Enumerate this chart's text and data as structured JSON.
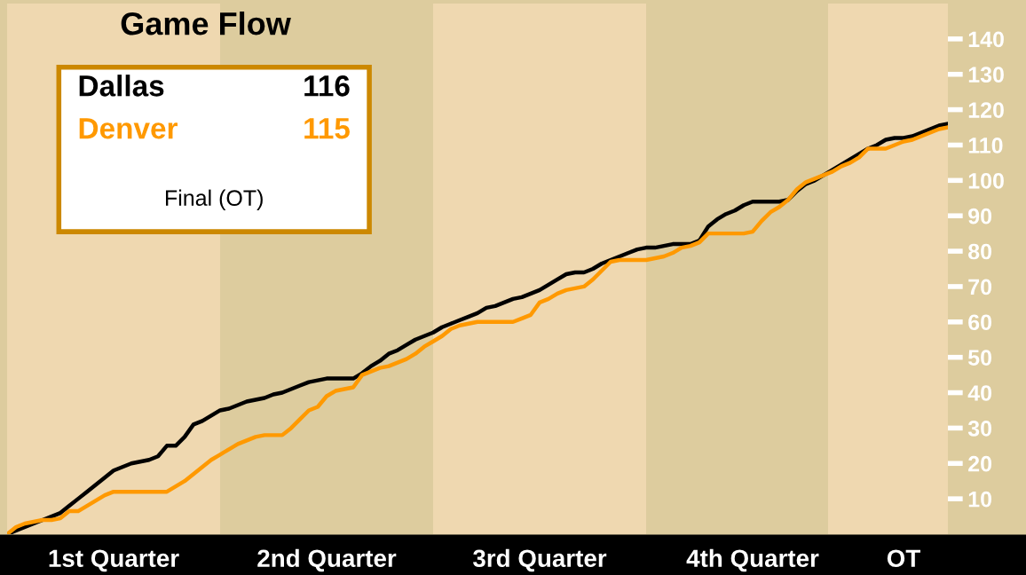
{
  "chart_data": {
    "type": "line",
    "title": "Game Flow",
    "categories": [
      null,
      null,
      null,
      null,
      null,
      null,
      null,
      null,
      null,
      null,
      null,
      null,
      "1st Quarter",
      null,
      null,
      null,
      null,
      null,
      null,
      null,
      null,
      null,
      null,
      null,
      null,
      null,
      null,
      null,
      null,
      null,
      null,
      null,
      null,
      null,
      null,
      null,
      "2nd Quarter",
      null,
      null,
      null,
      null,
      null,
      null,
      null,
      null,
      null,
      null,
      null,
      null,
      null,
      null,
      null,
      null,
      null,
      null,
      null,
      null,
      null,
      null,
      null,
      "3rd Quarter",
      null,
      null,
      null,
      null,
      null,
      null,
      null,
      null,
      null,
      null,
      null,
      null,
      null,
      null,
      null,
      null,
      null,
      null,
      null,
      null,
      null,
      null,
      null,
      "4th Quarter",
      null,
      null,
      null,
      null,
      null,
      null,
      null,
      null,
      null,
      null,
      null,
      null,
      null,
      null,
      null,
      null,
      "OT",
      null,
      null,
      null,
      null,
      null
    ],
    "series": [
      {
        "name": "Dallas",
        "color": "#000000",
        "values": [
          0,
          1,
          2,
          3,
          4,
          5,
          6,
          8,
          10,
          12,
          14,
          16,
          18,
          19,
          20,
          20.5,
          21,
          22,
          25,
          25,
          27.5,
          31,
          32,
          33.5,
          35,
          35.5,
          36.5,
          37.5,
          38,
          38.5,
          39.5,
          40,
          41,
          42,
          43,
          43.5,
          44,
          44,
          44,
          44,
          45.5,
          47.5,
          49,
          51,
          52,
          53.5,
          55,
          56,
          57,
          58.5,
          59.5,
          60.5,
          61.5,
          62.5,
          64,
          64.5,
          65.5,
          66.5,
          67,
          68,
          69,
          70.5,
          72,
          73.5,
          74,
          74,
          75,
          76.5,
          77.5,
          78.5,
          79.5,
          80.5,
          81,
          81,
          81.5,
          82,
          82,
          82,
          83,
          87,
          89,
          90.5,
          91.5,
          93,
          94,
          94,
          94,
          94,
          94.5,
          97,
          99,
          100,
          101.5,
          103,
          104.5,
          106,
          107.5,
          109,
          110,
          111.5,
          112,
          112,
          112.5,
          113.5,
          114.5,
          115.5,
          116
        ]
      },
      {
        "name": "Denver",
        "color": "#ff9900",
        "values": [
          0,
          2,
          3,
          3.5,
          4,
          4,
          4.5,
          6.5,
          6.5,
          8,
          9.5,
          11,
          12,
          12,
          12,
          12,
          12,
          12,
          12,
          13.5,
          15,
          17,
          19,
          21,
          22.5,
          24,
          25.5,
          26.5,
          27.5,
          28,
          28,
          28,
          30,
          32.5,
          35,
          36,
          39,
          40.5,
          41,
          41.5,
          45,
          46,
          47,
          47.5,
          48.5,
          49.5,
          51,
          53,
          54.5,
          56,
          58,
          59,
          59.5,
          60,
          60,
          60,
          60,
          60,
          61,
          62,
          65.5,
          66.5,
          68,
          69,
          69.5,
          70,
          72,
          74.5,
          77,
          77.5,
          77.5,
          77.5,
          77.5,
          78,
          78.5,
          79.5,
          81,
          81.5,
          82.5,
          85,
          85,
          85,
          85,
          85,
          85.5,
          88.5,
          91,
          92.5,
          94.5,
          97.5,
          99.5,
          100.5,
          101.5,
          102.5,
          104,
          105,
          106.5,
          109,
          109,
          109,
          110,
          111,
          111.5,
          112.5,
          113.5,
          114.5,
          115
        ]
      }
    ],
    "ylim": [
      0,
      150
    ],
    "yticks": [
      10,
      20,
      30,
      40,
      50,
      60,
      70,
      80,
      90,
      100,
      110,
      120,
      130,
      140
    ],
    "annotations": [
      "116",
      "115",
      "Final (OT)"
    ],
    "legend": "top left",
    "grid": false
  }
}
